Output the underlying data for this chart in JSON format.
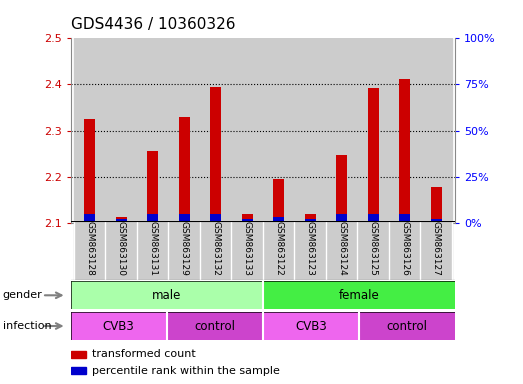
{
  "title": "GDS4436 / 10360326",
  "samples": [
    "GSM863128",
    "GSM863130",
    "GSM863131",
    "GSM863129",
    "GSM863132",
    "GSM863133",
    "GSM863122",
    "GSM863123",
    "GSM863124",
    "GSM863125",
    "GSM863126",
    "GSM863127"
  ],
  "red_values": [
    2.325,
    2.112,
    2.255,
    2.33,
    2.395,
    2.12,
    2.195,
    2.12,
    2.247,
    2.392,
    2.412,
    2.178
  ],
  "blue_pct": [
    5,
    2,
    5,
    5,
    5,
    2,
    3,
    2,
    5,
    5,
    5,
    2
  ],
  "ylim_left": [
    2.1,
    2.5
  ],
  "ylim_right": [
    0,
    100
  ],
  "yticks_left": [
    2.1,
    2.2,
    2.3,
    2.4,
    2.5
  ],
  "yticks_right": [
    0,
    25,
    50,
    75,
    100
  ],
  "ytick_labels_right": [
    "0%",
    "25%",
    "50%",
    "75%",
    "100%"
  ],
  "gender_groups": [
    {
      "label": "male",
      "start": 0,
      "end": 6,
      "color": "#aaffaa"
    },
    {
      "label": "female",
      "start": 6,
      "end": 12,
      "color": "#44ee44"
    }
  ],
  "infection_groups": [
    {
      "label": "CVB3",
      "start": 0,
      "end": 3,
      "color": "#ee66ee"
    },
    {
      "label": "control",
      "start": 3,
      "end": 6,
      "color": "#cc44cc"
    },
    {
      "label": "CVB3",
      "start": 6,
      "end": 9,
      "color": "#ee66ee"
    },
    {
      "label": "control",
      "start": 9,
      "end": 12,
      "color": "#cc44cc"
    }
  ],
  "legend_red": "transformed count",
  "legend_blue": "percentile rank within the sample",
  "bar_width": 0.35,
  "red_color": "#cc0000",
  "blue_color": "#0000cc",
  "baseline": 2.1,
  "title_fontsize": 11,
  "tick_fontsize": 8,
  "label_fontsize": 8,
  "sample_bg": "#cccccc"
}
